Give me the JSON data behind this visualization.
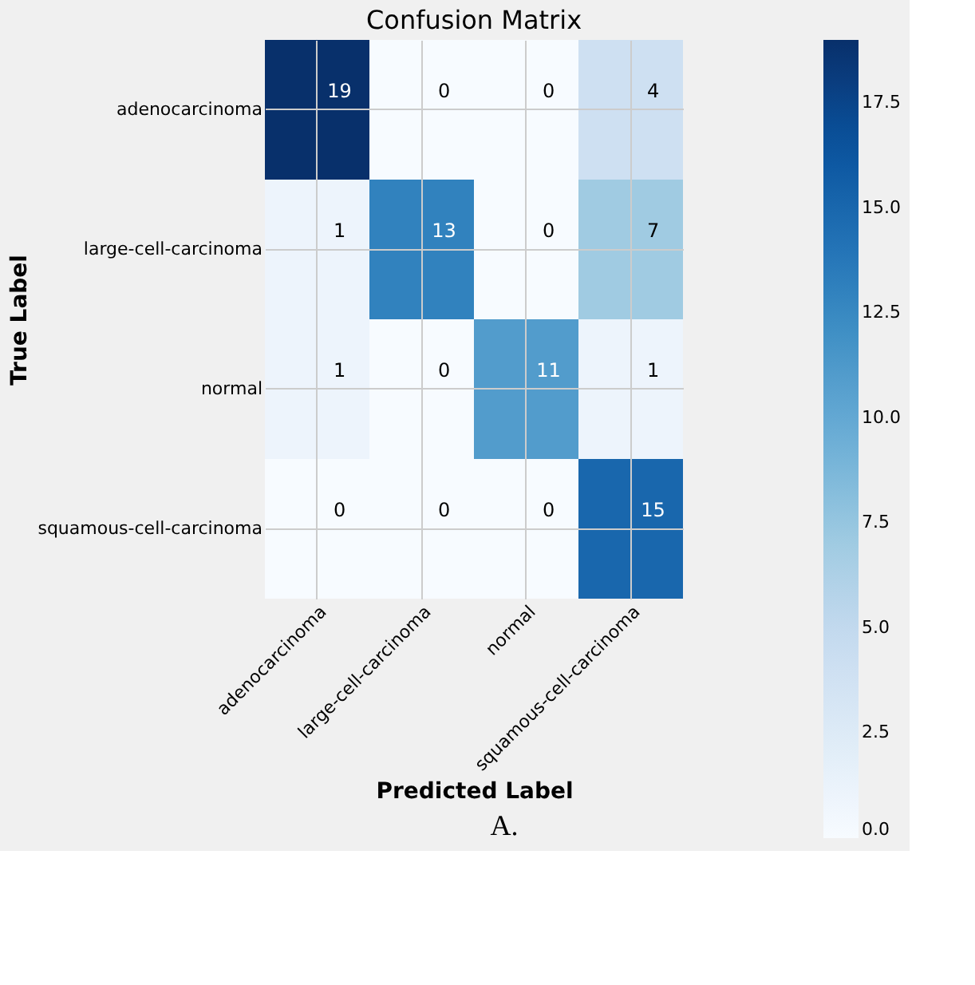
{
  "chart_data": {
    "type": "heatmap",
    "title": "Confusion Matrix",
    "xlabel": "Predicted Label",
    "ylabel": "True Label",
    "categories": [
      "adenocarcinoma",
      "large-cell-carcinoma",
      "normal",
      "squamous-cell-carcinoma"
    ],
    "y_categories": [
      "adenocarcinoma",
      "large-cell-carcinoma",
      "normal",
      "squamous-cell-carcinoma"
    ],
    "cells": [
      [
        19,
        0,
        0,
        4
      ],
      [
        1,
        13,
        0,
        7
      ],
      [
        1,
        0,
        11,
        1
      ],
      [
        0,
        0,
        0,
        15
      ]
    ],
    "data_labels": true,
    "grid": true,
    "clim": [
      0,
      19
    ],
    "cticks": [
      {
        "value": 0,
        "label": "0.0"
      },
      2.5,
      {
        "value": 5,
        "label": "5.0"
      },
      7.5,
      {
        "value": 10,
        "label": "10.0"
      },
      12.5,
      {
        "value": 15,
        "label": "15.0"
      },
      17.5
    ],
    "annotations": [
      "A."
    ]
  }
}
